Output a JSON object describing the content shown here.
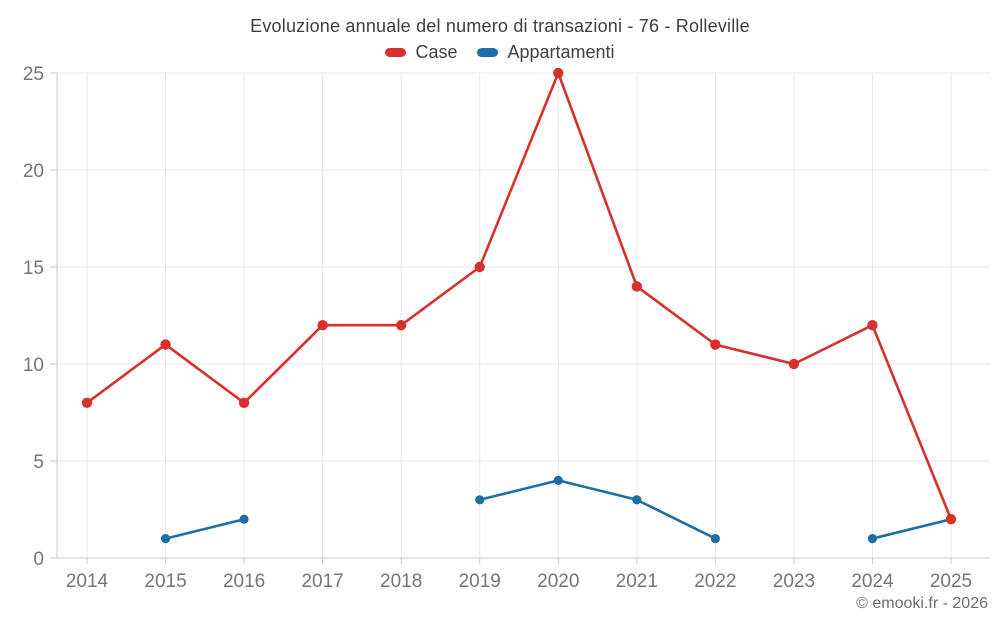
{
  "chart": {
    "title": "Evoluzione annuale del numero di transazioni - 76 - Rolleville",
    "credit": "© emooki.fr - 2026"
  },
  "colors": {
    "case_red": "#d7312c",
    "appartamenti_blue": "#1c6fa5",
    "grid": "#e8e8e8",
    "axis": "#c9c9c9",
    "tick_label": "#757575",
    "title_text": "#3f3f3f",
    "background": "#ffffff"
  },
  "chart_data": {
    "type": "line",
    "title": "Evoluzione annuale del numero di transazioni - 76 - Rolleville",
    "categories": [
      "2014",
      "2015",
      "2016",
      "2017",
      "2018",
      "2019",
      "2020",
      "2021",
      "2022",
      "2023",
      "2024",
      "2025"
    ],
    "series": [
      {
        "name": "Case",
        "color": "#d7312c",
        "values": [
          8,
          11,
          8,
          12,
          12,
          15,
          25,
          14,
          11,
          10,
          12,
          2
        ]
      },
      {
        "name": "Appartamenti",
        "color": "#1c6fa5",
        "values": [
          null,
          1,
          2,
          null,
          null,
          3,
          4,
          3,
          1,
          null,
          1,
          2
        ]
      }
    ],
    "xlabel": "",
    "ylabel": "",
    "yticks": [
      0,
      5,
      10,
      15,
      20,
      25
    ],
    "ylim": [
      0,
      25
    ],
    "grid": true,
    "legend_position": "top",
    "markers": true
  }
}
